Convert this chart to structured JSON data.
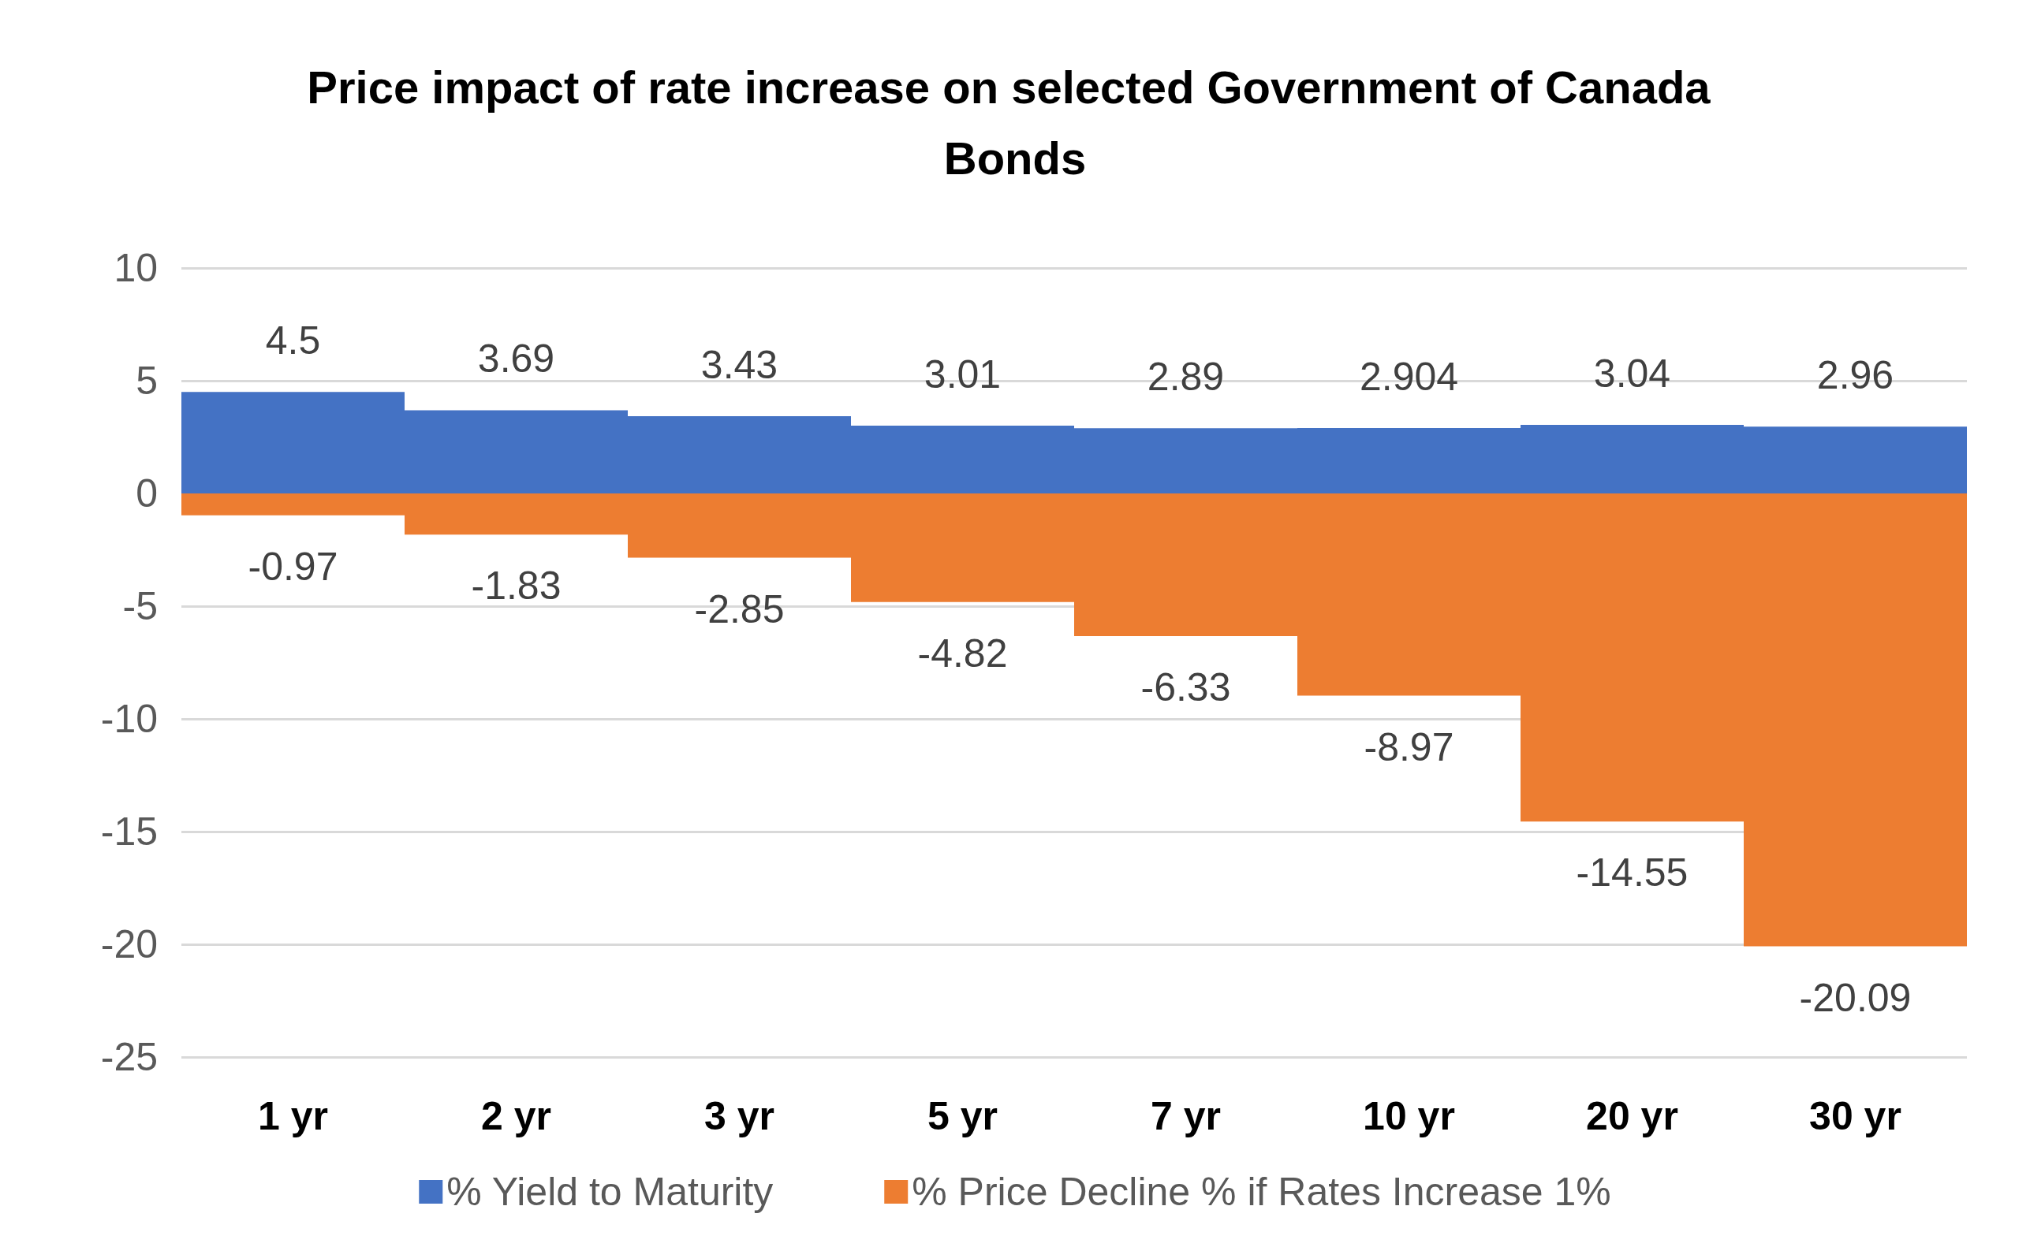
{
  "chart_data": {
    "type": "bar",
    "title": "Price impact of rate increase on selected Government of Canada Bonds",
    "categories": [
      "1 yr",
      "2 yr",
      "3 yr",
      "5 yr",
      "7 yr",
      "10 yr",
      "20 yr",
      "30 yr"
    ],
    "series": [
      {
        "name": "% Yield to Maturity",
        "color": "#4472c4",
        "values": [
          4.5,
          3.69,
          3.43,
          3.01,
          2.89,
          2.904,
          3.04,
          2.96
        ]
      },
      {
        "name": "% Price Decline % if Rates Increase 1%",
        "color": "#ed7d31",
        "values": [
          -0.97,
          -1.83,
          -2.85,
          -4.82,
          -6.33,
          -8.97,
          -14.55,
          -20.09
        ]
      }
    ],
    "ylim": [
      -25,
      10
    ],
    "yticks": [
      -25,
      -20,
      -15,
      -10,
      -5,
      0,
      5,
      10
    ],
    "stacked": true,
    "grid": "y",
    "legend": "bottom",
    "data_labels": true
  }
}
